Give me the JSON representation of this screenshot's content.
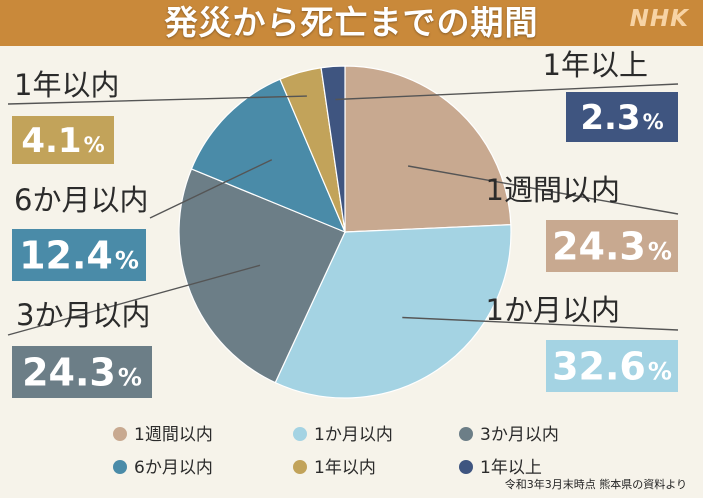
{
  "header": {
    "title": "発災から死亡までの期間",
    "logo": "NHK",
    "bg_color": "#c9893a"
  },
  "chart_data": {
    "type": "pie",
    "title": "発災から死亡までの期間",
    "unit": "%",
    "series": [
      {
        "label": "1週間以内",
        "value": 24.3,
        "value_text": "24.3",
        "color": "#c8a990"
      },
      {
        "label": "1か月以内",
        "value": 32.6,
        "value_text": "32.6",
        "color": "#a4d3e3"
      },
      {
        "label": "3か月以内",
        "value": 24.3,
        "value_text": "24.3",
        "color": "#6c7e87"
      },
      {
        "label": "6か月以内",
        "value": 12.4,
        "value_text": "12.4",
        "color": "#4a8ba8"
      },
      {
        "label": "1年以内",
        "value": 4.1,
        "value_text": "4.1",
        "color": "#c2a35a"
      },
      {
        "label": "1年以上",
        "value": 2.3,
        "value_text": "2.3",
        "color": "#3f5580"
      }
    ],
    "legend": {
      "position": "bottom"
    }
  },
  "footnote": "令和3年3月末時点 熊本県の資料より"
}
